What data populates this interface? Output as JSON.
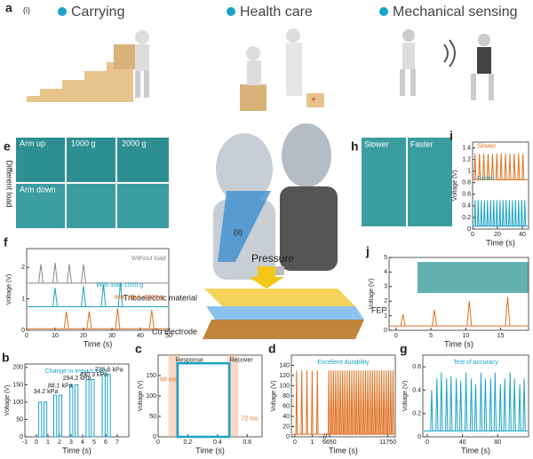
{
  "panels": {
    "a": "a",
    "a_sub": "(i)",
    "carrying": "Carrying",
    "health": "Health care",
    "mech": "Mechanical sensing",
    "e": "e",
    "arm_up": "Arm up",
    "g1000": "1000 g",
    "g2000": "2000 g",
    "arm_down": "Arm down",
    "diff_load": "Different load",
    "h": "h",
    "slower": "Slower",
    "faster": "Faster",
    "ii": "(ii)",
    "pressure": "Pressure",
    "tribo": "Triboelectric material",
    "cu": "Cu electrode",
    "fep": "FEP"
  },
  "chart_data": [
    {
      "type": "spike",
      "panel": "f",
      "xlabel": "Time (s)",
      "ylabel": "Voltage (V)",
      "xlim": [
        0,
        50
      ],
      "xticks": [
        0,
        10,
        20,
        30,
        40,
        50
      ],
      "ylim": [
        0,
        2.6
      ],
      "yticks": [
        0,
        1,
        2
      ],
      "series": [
        {
          "name": "Without load",
          "color": "#888888",
          "baseline": 1.5,
          "x": [
            5,
            10,
            15,
            20
          ],
          "values": [
            2.1,
            2.15,
            2.1,
            2.1
          ]
        },
        {
          "name": "With load-1000 g",
          "color": "#1aa3c8",
          "baseline": 0.75,
          "x": [
            10,
            20,
            27,
            33
          ],
          "values": [
            1.35,
            1.4,
            1.45,
            1.5
          ]
        },
        {
          "name": "With load -2000 g",
          "color": "#e07020",
          "baseline": 0.05,
          "x": [
            14,
            22,
            32,
            44
          ],
          "values": [
            0.6,
            0.6,
            0.7,
            0.65
          ]
        }
      ]
    },
    {
      "type": "pulse",
      "panel": "b",
      "title": "Change in impact force",
      "xlabel": "Time (s)",
      "ylabel": "Voltage (V)",
      "xlim": [
        -1,
        8
      ],
      "xticks": [
        -1,
        0,
        1,
        2,
        3,
        4,
        5,
        6,
        7
      ],
      "ylim": [
        0,
        210
      ],
      "yticks": [
        0,
        50,
        100,
        150,
        200
      ],
      "annotations": [
        "34.2 kPa",
        "88.1 kPa",
        "294.2 kPa",
        "490.3 kPa",
        "735.5 kPa"
      ],
      "series": [
        {
          "color": "#1aa3c8",
          "x": [
            0.2,
            0.65,
            1.5,
            1.95,
            2.9,
            3.35,
            4.3,
            4.75,
            5.7,
            6.15
          ],
          "x_end": [
            0.45,
            0.9,
            1.75,
            2.2,
            3.15,
            3.6,
            4.55,
            5.0,
            5.95,
            6.4
          ],
          "values": [
            100,
            100,
            120,
            120,
            150,
            150,
            165,
            165,
            180,
            180
          ]
        }
      ]
    },
    {
      "type": "pulse",
      "panel": "c",
      "xlabel": "Time (s)",
      "ylabel": "Voltage (V)",
      "xlim": [
        0,
        0.7
      ],
      "xticks": [
        0,
        0.2,
        0.4,
        0.6
      ],
      "ylim": [
        0,
        200
      ],
      "yticks": [
        0,
        50,
        100,
        150
      ],
      "annotations": [
        "Response",
        "Recover",
        "68 ms",
        "72 ms"
      ],
      "series": [
        {
          "color": "#1aa3c8",
          "x": [
            0.13
          ],
          "x_end": [
            0.48
          ],
          "values": [
            180
          ]
        }
      ]
    },
    {
      "type": "spike",
      "panel": "d",
      "title": "Excellent durability",
      "xlabel": "Time (s)",
      "ylabel": "Voltage (V)",
      "xlim": [
        -0.2,
        12400
      ],
      "xbreak": [
        1.6,
        6500
      ],
      "xticks": [
        0,
        1,
        6650,
        11750
      ],
      "ylim": [
        0,
        160
      ],
      "yticks": [
        0,
        20,
        40,
        60,
        80,
        100,
        120,
        140
      ],
      "series": [
        {
          "color": "#e07020",
          "baseline": 5,
          "x": [
            0.1,
            0.4,
            0.7,
            1.0,
            1.3,
            6600,
            6800,
            7000,
            7200,
            7400,
            7600,
            7800,
            8000,
            8200,
            8400,
            8600,
            8800,
            9000,
            9200,
            9400,
            9600,
            9800,
            10000,
            10200,
            10400,
            10600,
            10800,
            11000,
            11200,
            11400,
            11600,
            11800,
            12000,
            12200
          ],
          "values": [
            130,
            130,
            130,
            130,
            130,
            130,
            130,
            130,
            130,
            130,
            130,
            130,
            130,
            130,
            130,
            130,
            130,
            130,
            130,
            130,
            130,
            130,
            130,
            130,
            130,
            130,
            130,
            130,
            130,
            130,
            130,
            130,
            130,
            130
          ]
        }
      ]
    },
    {
      "type": "spike",
      "panel": "g",
      "title": "Test of accuracy",
      "xlabel": "Time (s)",
      "ylabel": "Voltage (V)",
      "xlim": [
        -5,
        115
      ],
      "xticks": [
        0,
        40,
        80
      ],
      "ylim": [
        0,
        0.7
      ],
      "yticks": [
        0,
        0.2,
        0.4,
        0.6
      ],
      "series": [
        {
          "color": "#1aa3c8",
          "baseline": 0.05,
          "x": [
            5,
            11,
            16,
            22,
            27,
            33,
            38,
            44,
            50,
            55,
            61,
            66,
            72,
            77,
            83,
            88,
            94,
            99,
            105,
            110
          ],
          "values": [
            0.4,
            0.5,
            0.55,
            0.5,
            0.52,
            0.5,
            0.48,
            0.55,
            0.5,
            0.45,
            0.55,
            0.5,
            0.5,
            0.55,
            0.45,
            0.5,
            0.55,
            0.5,
            0.45,
            0.5
          ]
        }
      ]
    },
    {
      "type": "spike",
      "panel": "i",
      "xlabel": "Time (s)",
      "ylabel": "Voltage (V)",
      "xlim": [
        0,
        45
      ],
      "xticks": [
        0,
        20,
        40
      ],
      "ylim": [
        0,
        1.5
      ],
      "yticks": [
        0,
        0.2,
        0.4,
        0.6,
        0.8,
        1.0,
        1.2,
        1.4
      ],
      "series": [
        {
          "name": "Slower",
          "color": "#e07020",
          "baseline": 0.85,
          "x": [
            2,
            5.5,
            9,
            12.5,
            16,
            19.5,
            23,
            26.5,
            30,
            33.5,
            37,
            40.5
          ],
          "values": [
            1.3,
            1.3,
            1.3,
            1.3,
            1.3,
            1.3,
            1.3,
            1.3,
            1.3,
            1.3,
            1.3,
            1.3
          ]
        },
        {
          "name": "Faster",
          "color": "#1aa3c8",
          "baseline": 0.05,
          "x": [
            2,
            4.5,
            7,
            9.5,
            12,
            14.5,
            17,
            19.5,
            22,
            24.5,
            27,
            29.5,
            32,
            34.5,
            37,
            39.5,
            42
          ],
          "values": [
            0.5,
            0.5,
            0.5,
            0.5,
            0.5,
            0.5,
            0.5,
            0.5,
            0.5,
            0.5,
            0.5,
            0.5,
            0.5,
            0.5,
            0.5,
            0.5,
            0.5
          ]
        }
      ]
    },
    {
      "type": "spike",
      "panel": "j",
      "xlabel": "Time (s)",
      "ylabel": "Voltage (V)",
      "xlim": [
        -1,
        19
      ],
      "xticks": [
        0,
        5,
        10,
        15
      ],
      "ylim": [
        0,
        5
      ],
      "yticks": [
        0,
        1,
        2,
        3,
        4,
        5
      ],
      "series": [
        {
          "color": "#e07020",
          "baseline": 0.3,
          "x": [
            1,
            5.5,
            10.5,
            16
          ],
          "values": [
            1.1,
            1.4,
            2.0,
            2.3
          ]
        }
      ]
    }
  ]
}
